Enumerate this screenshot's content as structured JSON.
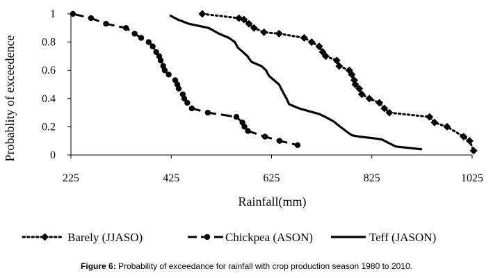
{
  "chart_data": {
    "type": "line",
    "title": "",
    "xlabel": "Rainfall(mm)",
    "ylabel": "Probablity of exceedence",
    "xlim": [
      225,
      1025
    ],
    "ylim": [
      0,
      1
    ],
    "x_ticks": [
      "225",
      "425",
      "625",
      "825",
      "1025"
    ],
    "y_ticks": [
      "0",
      "0.2",
      "0.4",
      "0.6",
      "0.8",
      "1"
    ],
    "legend_position": "bottom",
    "series": [
      {
        "name": "Barely (JJASO)",
        "style": "dotted",
        "marker": "diamond",
        "color": "#000000",
        "x": [
          487,
          560,
          570,
          580,
          590,
          610,
          640,
          690,
          705,
          720,
          727,
          733,
          755,
          760,
          780,
          785,
          790,
          792,
          800,
          805,
          820,
          840,
          850,
          860,
          940,
          950,
          975,
          1008,
          1020,
          1028
        ],
        "y": [
          1.0,
          0.97,
          0.96,
          0.93,
          0.9,
          0.87,
          0.86,
          0.83,
          0.8,
          0.77,
          0.73,
          0.7,
          0.67,
          0.63,
          0.6,
          0.57,
          0.53,
          0.5,
          0.47,
          0.43,
          0.4,
          0.37,
          0.33,
          0.3,
          0.27,
          0.23,
          0.2,
          0.13,
          0.1,
          0.03
        ]
      },
      {
        "name": "Chickpea (ASON)",
        "style": "dashed",
        "marker": "circle",
        "color": "#000000",
        "x": [
          229,
          265,
          295,
          335,
          352,
          365,
          380,
          388,
          395,
          401,
          404,
          409,
          412,
          420,
          433,
          437,
          440,
          448,
          451,
          457,
          466,
          498,
          555,
          567,
          571,
          578,
          612,
          641,
          677
        ],
        "y": [
          1.0,
          0.97,
          0.93,
          0.9,
          0.86,
          0.83,
          0.8,
          0.77,
          0.73,
          0.7,
          0.67,
          0.63,
          0.6,
          0.57,
          0.53,
          0.5,
          0.47,
          0.43,
          0.4,
          0.37,
          0.33,
          0.3,
          0.27,
          0.23,
          0.2,
          0.17,
          0.13,
          0.1,
          0.07
        ]
      },
      {
        "name": "Teff (JASON)",
        "style": "solid",
        "marker": "none",
        "color": "#000000",
        "x": [
          422,
          438,
          460,
          500,
          510,
          520,
          540,
          552,
          558,
          568,
          577,
          585,
          605,
          614,
          620,
          630,
          640,
          647,
          655,
          660,
          680,
          700,
          720,
          732,
          748,
          762,
          777,
          785,
          800,
          825,
          845,
          867,
          873,
          925
        ],
        "y": [
          0.99,
          0.96,
          0.93,
          0.9,
          0.88,
          0.86,
          0.83,
          0.8,
          0.76,
          0.73,
          0.7,
          0.66,
          0.63,
          0.6,
          0.56,
          0.53,
          0.5,
          0.45,
          0.4,
          0.36,
          0.33,
          0.31,
          0.29,
          0.27,
          0.24,
          0.2,
          0.16,
          0.14,
          0.13,
          0.12,
          0.11,
          0.07,
          0.06,
          0.04
        ]
      }
    ]
  },
  "caption": {
    "label": "Figure 6:",
    "text": " Probability of exceedance for rainfall with crop production season 1980 to 2010."
  }
}
